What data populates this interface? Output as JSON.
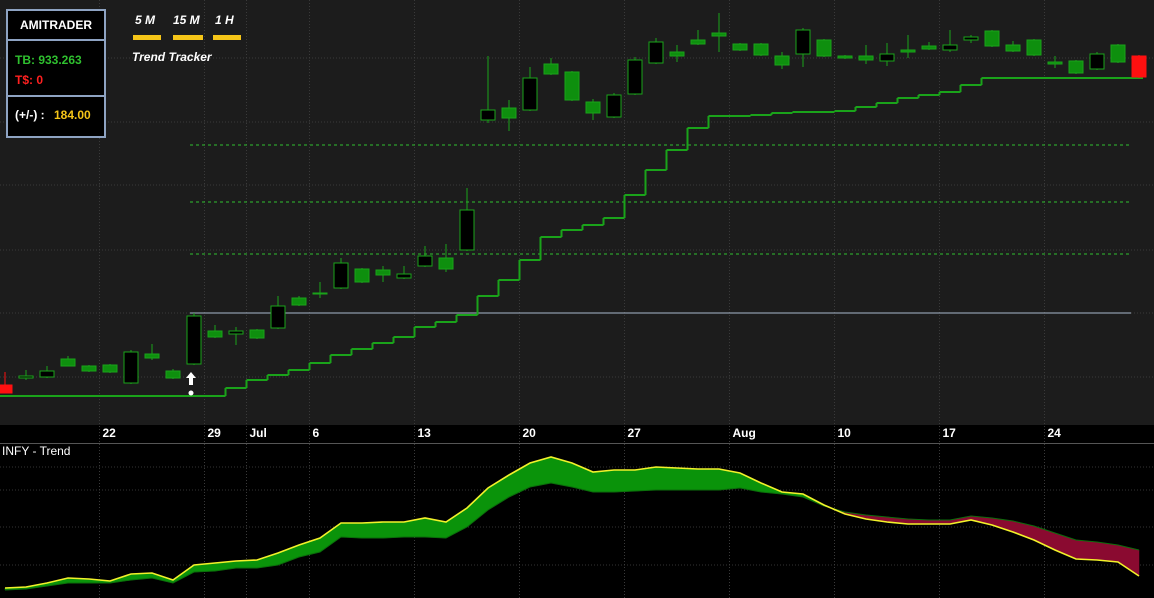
{
  "header": {
    "brand": "AMITRADER",
    "tb_label": "TB: 933.263",
    "ts_label": "T$: 0",
    "pl_label": "(+/-) :",
    "pl_value": "184.00"
  },
  "timeframes": [
    "5 M",
    "15 M",
    "1 H"
  ],
  "indicator_name": "Trend Tracker",
  "chart_data": [
    {
      "type": "candlestick",
      "categories": [
        null,
        null,
        null,
        null,
        null,
        "22",
        null,
        null,
        null,
        null,
        "29",
        null,
        "Jul",
        null,
        null,
        "6",
        null,
        null,
        null,
        null,
        "13",
        null,
        null,
        null,
        null,
        "20",
        null,
        null,
        null,
        null,
        "27",
        null,
        null,
        null,
        null,
        "Aug",
        null,
        null,
        null,
        null,
        "10",
        null,
        null,
        null,
        null,
        "17",
        null,
        null,
        null,
        null,
        "24",
        null,
        null,
        null,
        null
      ],
      "open": [
        40,
        47,
        48,
        66,
        59,
        60,
        42,
        71,
        54,
        61,
        94,
        91,
        95,
        97,
        127,
        132,
        137,
        156,
        155,
        147,
        159,
        167,
        175,
        305,
        317,
        315,
        361,
        353,
        323,
        308,
        331,
        362,
        373,
        385,
        392,
        381,
        381,
        369,
        371,
        385,
        369,
        369,
        364,
        375,
        379,
        375,
        385,
        394,
        380,
        385,
        363,
        364,
        356,
        380,
        369
      ],
      "high": [
        53,
        55,
        59,
        69,
        60,
        61,
        75,
        81,
        56,
        112,
        100,
        98,
        96,
        129,
        129,
        143,
        167,
        157,
        159,
        159,
        179,
        181,
        237,
        369,
        325,
        358,
        367,
        354,
        326,
        332,
        368,
        387,
        380,
        395,
        412,
        382,
        382,
        373,
        397,
        386,
        370,
        380,
        382,
        390,
        383,
        395,
        390,
        395,
        384,
        386,
        369,
        365,
        373,
        381,
        370
      ],
      "low": [
        32,
        45,
        47,
        59,
        53,
        52,
        41,
        65,
        46,
        60,
        87,
        80,
        86,
        96,
        119,
        127,
        136,
        142,
        143,
        146,
        158,
        153,
        174,
        302,
        294,
        314,
        350,
        324,
        305,
        307,
        330,
        361,
        363,
        380,
        373,
        374,
        369,
        356,
        358,
        368,
        366,
        361,
        359,
        367,
        375,
        373,
        382,
        378,
        373,
        369,
        357,
        351,
        355,
        362,
        347
      ],
      "close": [
        32,
        49,
        54,
        59,
        54,
        53,
        73,
        67,
        47,
        109,
        88,
        94,
        87,
        119,
        120,
        131,
        162,
        143,
        150,
        151,
        169,
        156,
        215,
        315,
        307,
        347,
        351,
        325,
        312,
        330,
        365,
        383,
        369,
        381,
        389,
        375,
        370,
        360,
        395,
        369,
        367,
        365,
        371,
        373,
        376,
        380,
        388,
        379,
        374,
        370,
        361,
        352,
        371,
        363,
        348
      ],
      "up_color": "#000000",
      "down_color": "#0e8f0e",
      "wick_color": "#1aa31a",
      "highlight_indices": [
        0,
        54
      ],
      "highlight_color": "#ff1010",
      "series": [
        {
          "color": "#1aa31a",
          "values": [
            29,
            29,
            29,
            29,
            29,
            29,
            29,
            29,
            29,
            29,
            29,
            37,
            45,
            50,
            55,
            62,
            70,
            76,
            82,
            88,
            98,
            103,
            110,
            129,
            145,
            165,
            188,
            195,
            200,
            207,
            230,
            255,
            275,
            297,
            309,
            309,
            310,
            312,
            313,
            313,
            314,
            318,
            322,
            327,
            330,
            333,
            340,
            347,
            347,
            347,
            347,
            347,
            347,
            347,
            347
          ]
        }
      ],
      "levels": [
        {
          "value": 280,
          "style": "dashed",
          "color": "#2fbf2f"
        },
        {
          "value": 223,
          "style": "dashed",
          "color": "#2fbf2f"
        },
        {
          "value": 171,
          "style": "dashed",
          "color": "#2fbf2f"
        },
        {
          "value": 112,
          "style": "solid",
          "color": "#a9b8cc"
        }
      ],
      "ylim": [
        0,
        425
      ]
    },
    {
      "type": "band",
      "title": "INFY - Trend",
      "series": [
        {
          "color": "#f2f22a",
          "values": [
            10,
            11,
            15,
            20,
            19,
            17,
            24,
            25,
            18,
            33,
            35,
            37,
            38,
            45,
            53,
            60,
            75,
            75,
            76,
            76,
            80,
            76,
            90,
            110,
            123,
            135,
            141,
            135,
            126,
            128,
            128,
            131,
            130,
            129,
            129,
            125,
            115,
            106,
            104,
            93,
            84,
            79,
            76,
            74,
            74,
            74,
            78,
            73,
            66,
            58,
            48,
            39,
            38,
            36,
            22
          ]
        },
        {
          "color": "#0b6e0b",
          "values": [
            8,
            9,
            12,
            15,
            15,
            15,
            18,
            20,
            15,
            26,
            27,
            30,
            30,
            33,
            41,
            46,
            61,
            60,
            60,
            61,
            61,
            60,
            71,
            88,
            101,
            111,
            115,
            111,
            106,
            106,
            107,
            108,
            108,
            108,
            108,
            110,
            106,
            104,
            101,
            92,
            86,
            83,
            81,
            79,
            78,
            78,
            82,
            80,
            77,
            72,
            65,
            58,
            56,
            53,
            48
          ]
        }
      ],
      "above_color": "#0a930a",
      "below_color": "#8a0a30",
      "ylim": [
        0,
        155
      ]
    }
  ]
}
